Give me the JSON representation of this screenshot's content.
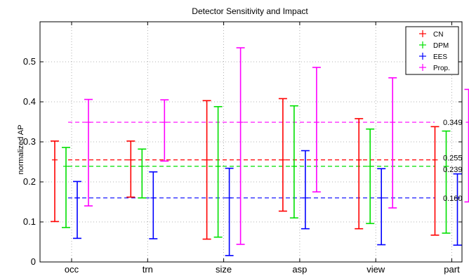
{
  "chart_data": {
    "type": "errorbar",
    "title": "Detector Sensitivity and Impact",
    "ylabel": "normalized AP",
    "xlabel": "",
    "ylim": [
      0,
      0.6
    ],
    "yticks": [
      "0",
      "0.1",
      "0.2",
      "0.3",
      "0.4",
      "0.5"
    ],
    "categories": [
      "occ",
      "trn",
      "size",
      "asp",
      "view",
      "part"
    ],
    "grid": "dotted",
    "legend_position": "top-right",
    "series": [
      {
        "name": "CN",
        "color": "#ff0000",
        "reference": 0.255,
        "reference_label": "0.255",
        "low": [
          0.101,
          0.162,
          0.057,
          0.127,
          0.083,
          0.067
        ],
        "high": [
          0.302,
          0.302,
          0.403,
          0.408,
          0.358,
          0.338
        ]
      },
      {
        "name": "DPM",
        "color": "#00e000",
        "reference": 0.239,
        "reference_label": "0.239",
        "low": [
          0.086,
          0.16,
          0.062,
          0.11,
          0.096,
          0.072
        ],
        "high": [
          0.286,
          0.282,
          0.388,
          0.39,
          0.332,
          0.327
        ]
      },
      {
        "name": "EES",
        "color": "#0000ff",
        "reference": 0.16,
        "reference_label": "0.160",
        "low": [
          0.059,
          0.058,
          0.016,
          0.083,
          0.043,
          0.042
        ],
        "high": [
          0.201,
          0.225,
          0.234,
          0.278,
          0.233,
          0.22
        ]
      },
      {
        "name": "Prop.",
        "color": "#ff00ff",
        "reference": 0.349,
        "reference_label": "0.349",
        "low": [
          0.14,
          0.252,
          0.044,
          0.175,
          0.135,
          0.15
        ],
        "high": [
          0.406,
          0.405,
          0.535,
          0.486,
          0.46,
          0.431
        ]
      }
    ]
  }
}
